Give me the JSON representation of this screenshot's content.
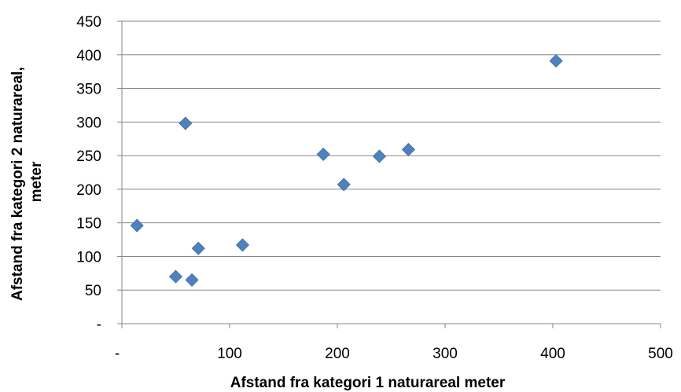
{
  "chart_data": {
    "type": "scatter",
    "title": "",
    "xlabel": "Afstand fra kategori 1 naturareal meter",
    "ylabel_lines": [
      "Afstand fra kategori 2 naturareal,",
      "meter"
    ],
    "xlim": [
      0,
      500
    ],
    "ylim": [
      0,
      450
    ],
    "x_ticks": [
      0,
      100,
      200,
      300,
      400,
      500
    ],
    "y_ticks": [
      0,
      50,
      100,
      150,
      200,
      250,
      300,
      350,
      400,
      450
    ],
    "x_tick_labels": [
      "-",
      "100",
      "200",
      "300",
      "400",
      "500"
    ],
    "y_tick_labels": [
      "-",
      "50",
      "100",
      "150",
      "200",
      "250",
      "300",
      "350",
      "400",
      "450"
    ],
    "grid": "horizontal",
    "legend": "none",
    "marker": "diamond",
    "marker_color": "#4F81BD",
    "series": [
      {
        "points": [
          {
            "x": 14,
            "y": 146
          },
          {
            "x": 50,
            "y": 70
          },
          {
            "x": 59,
            "y": 298
          },
          {
            "x": 65,
            "y": 65
          },
          {
            "x": 71,
            "y": 112
          },
          {
            "x": 112,
            "y": 117
          },
          {
            "x": 187,
            "y": 252
          },
          {
            "x": 206,
            "y": 207
          },
          {
            "x": 239,
            "y": 249
          },
          {
            "x": 266,
            "y": 259
          },
          {
            "x": 403,
            "y": 391
          }
        ]
      }
    ]
  }
}
